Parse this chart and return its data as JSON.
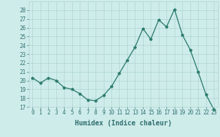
{
  "x": [
    0,
    1,
    2,
    3,
    4,
    5,
    6,
    7,
    8,
    9,
    10,
    11,
    12,
    13,
    14,
    15,
    16,
    17,
    18,
    19,
    20,
    21,
    22,
    23
  ],
  "y": [
    20.3,
    19.7,
    20.3,
    20.0,
    19.2,
    19.0,
    18.5,
    17.8,
    17.7,
    18.3,
    19.3,
    20.8,
    22.3,
    23.8,
    25.9,
    24.7,
    26.9,
    26.1,
    28.1,
    25.2,
    23.5,
    21.0,
    18.4,
    16.7
  ],
  "line_color": "#2e7d6e",
  "marker": "*",
  "marker_size": 3,
  "bg_color": "#ceecea",
  "grid_color": "#aed4d0",
  "xlabel": "Humidex (Indice chaleur)",
  "ylim": [
    17,
    29
  ],
  "xlim": [
    -0.5,
    23.5
  ],
  "yticks": [
    17,
    18,
    19,
    20,
    21,
    22,
    23,
    24,
    25,
    26,
    27,
    28
  ],
  "xticks": [
    0,
    1,
    2,
    3,
    4,
    5,
    6,
    7,
    8,
    9,
    10,
    11,
    12,
    13,
    14,
    15,
    16,
    17,
    18,
    19,
    20,
    21,
    22,
    23
  ],
  "tick_color": "#2e6e6e",
  "tick_fontsize": 5.5,
  "xlabel_fontsize": 7,
  "line_width": 1.0
}
